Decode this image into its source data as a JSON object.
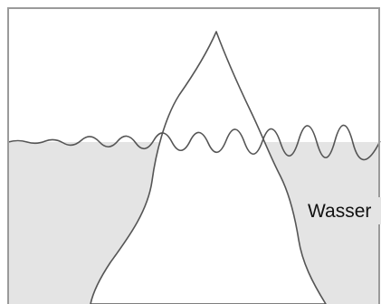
{
  "labels": {
    "water": "Wasser"
  }
}
